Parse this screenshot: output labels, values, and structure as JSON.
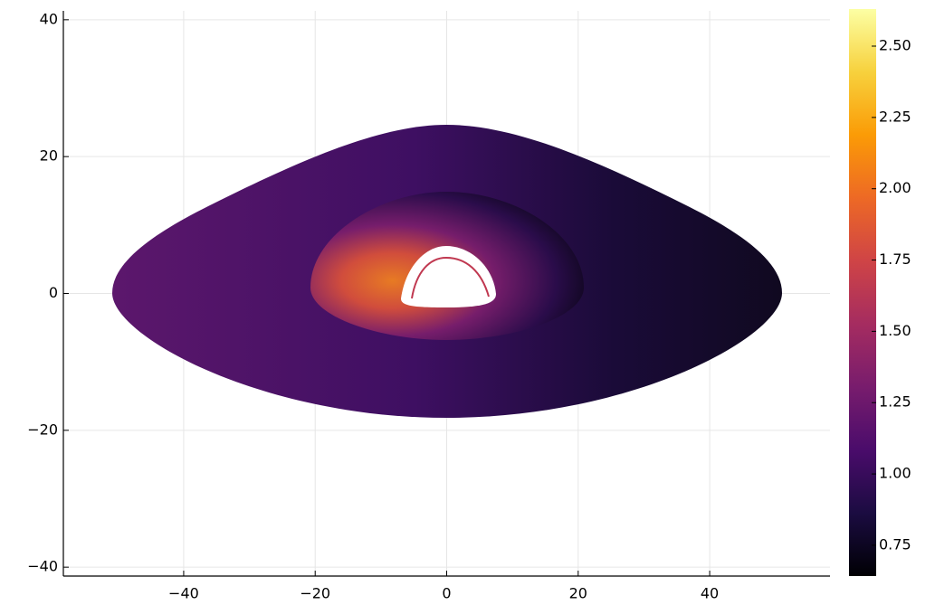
{
  "chart_data": {
    "type": "heatmap",
    "xlim": [
      -58.3,
      58.3
    ],
    "ylim": [
      -41.3,
      41.3
    ],
    "xticks": [
      {
        "value": -40,
        "label": "−40"
      },
      {
        "value": -20,
        "label": "−20"
      },
      0,
      20,
      40
    ],
    "yticks": [
      {
        "value": -40,
        "label": "−40"
      },
      {
        "value": -20,
        "label": "−20"
      },
      0,
      20,
      40
    ],
    "grid": true,
    "colormap": "inferno",
    "colormap_colors": [
      "#000004",
      "#1b0c41",
      "#4a0c6b",
      "#781c6d",
      "#a52c60",
      "#cf4446",
      "#ed6925",
      "#fb9b06",
      "#f7d13d",
      "#fcffa4"
    ],
    "clim": [
      0.642,
      2.63
    ],
    "cticks": [
      {
        "value": 0.75,
        "label": "0.75"
      },
      {
        "value": 1.0,
        "label": "1.00"
      },
      {
        "value": 1.25,
        "label": "1.25"
      },
      {
        "value": 1.5,
        "label": "1.50"
      },
      {
        "value": 1.75,
        "label": "1.75"
      },
      {
        "value": 2.0,
        "label": "2.00"
      },
      {
        "value": 2.25,
        "label": "2.25"
      },
      {
        "value": 2.5,
        "label": "2.50"
      }
    ]
  }
}
